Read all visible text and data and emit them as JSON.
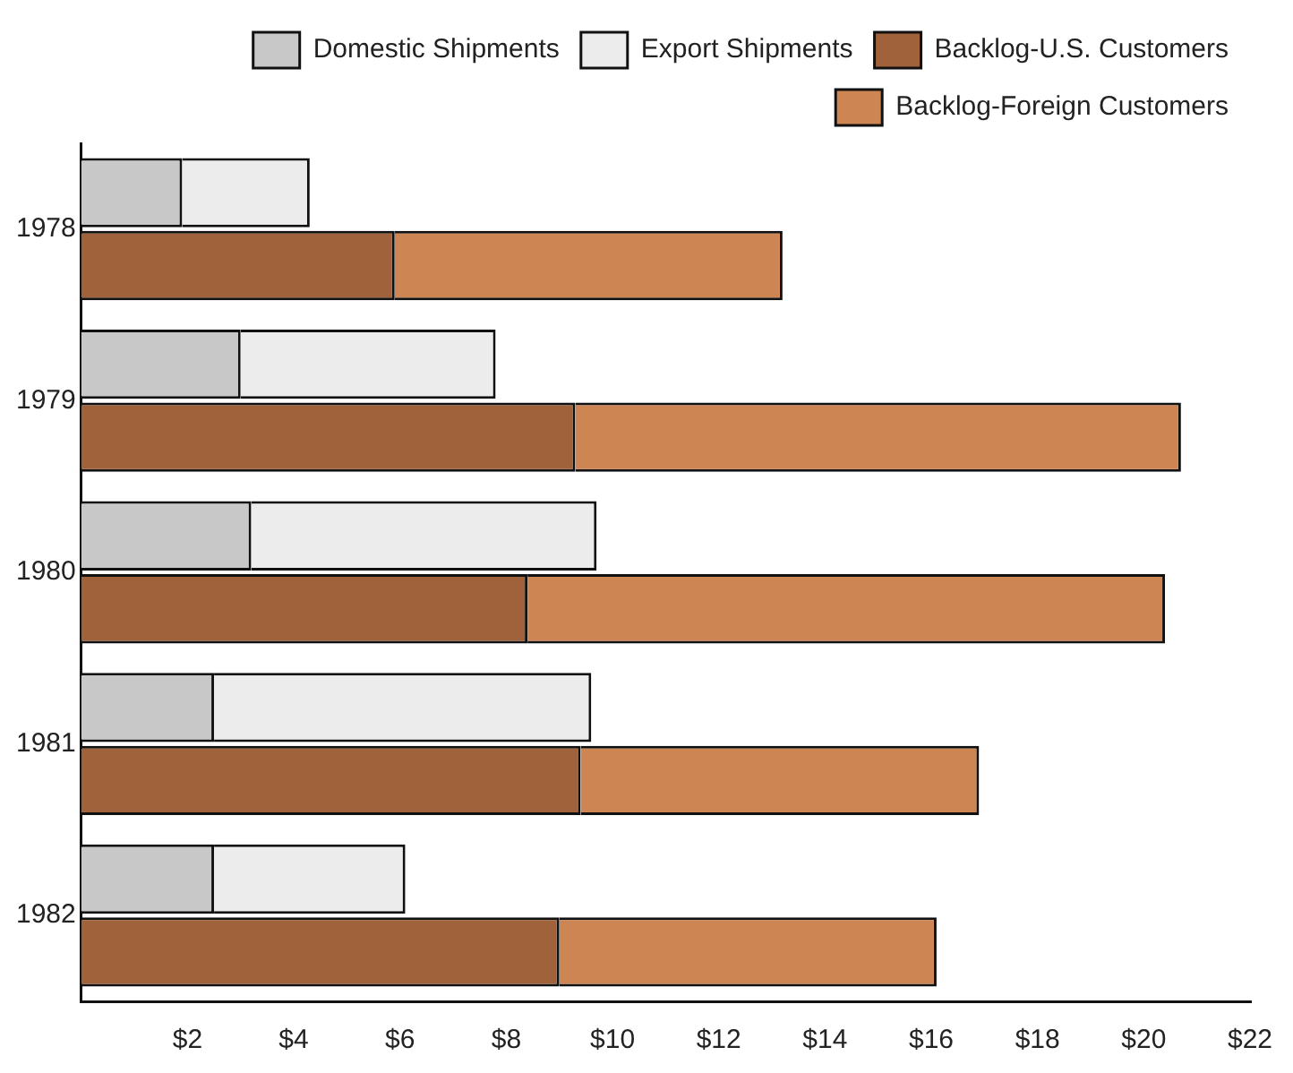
{
  "chart_data": {
    "type": "bar",
    "orientation": "horizontal",
    "categories": [
      "1978",
      "1979",
      "1980",
      "1981",
      "1982"
    ],
    "series": [
      {
        "name": "Domestic Shipments",
        "color": "#c8c8c8",
        "base": [
          0,
          0,
          0,
          0,
          0
        ],
        "values": [
          1.9,
          3.0,
          3.2,
          2.5,
          2.5
        ]
      },
      {
        "name": "Export Shipments",
        "color": "#ececec",
        "base": [
          1.9,
          3.0,
          3.2,
          2.5,
          2.5
        ],
        "values": [
          2.4,
          4.8,
          6.5,
          7.1,
          3.6
        ]
      },
      {
        "name": "Backlog-U.S. Customers",
        "color": "#a0623a",
        "base": [
          0,
          0,
          0,
          0,
          0
        ],
        "values": [
          5.9,
          9.3,
          8.4,
          9.4,
          9.0
        ]
      },
      {
        "name": "Backlog-Foreign Customers",
        "color": "#cd8553",
        "base": [
          5.9,
          9.3,
          8.4,
          9.4,
          9.0
        ],
        "values": [
          7.3,
          11.4,
          12.0,
          7.5,
          7.1
        ]
      }
    ],
    "xlim": [
      0,
      22
    ],
    "xticks": [
      {
        "value": 2,
        "label": "$2"
      },
      {
        "value": 4,
        "label": "$4"
      },
      {
        "value": 6,
        "label": "$6"
      },
      {
        "value": 8,
        "label": "$8"
      },
      {
        "value": 10,
        "label": "$10"
      },
      {
        "value": 12,
        "label": "$12"
      },
      {
        "value": 14,
        "label": "$14"
      },
      {
        "value": 16,
        "label": "$16"
      },
      {
        "value": 18,
        "label": "$18"
      },
      {
        "value": 20,
        "label": "$20"
      },
      {
        "value": 22,
        "label": "$22"
      }
    ],
    "grid": false,
    "legend": "top right"
  }
}
